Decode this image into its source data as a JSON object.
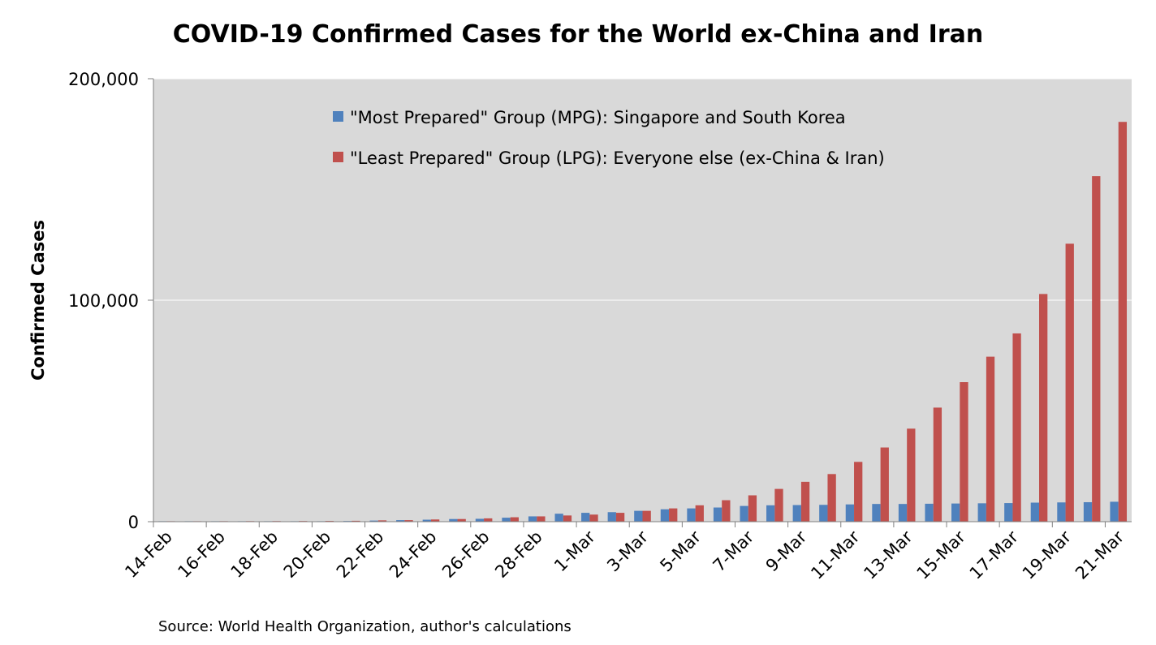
{
  "chart_data": {
    "type": "bar",
    "title": "COVID-19 Confirmed Cases for the World ex-China and Iran",
    "xlabel": "",
    "ylabel": "Confirmed Cases",
    "ylim": [
      0,
      200000
    ],
    "yticks": [
      "0",
      "100,000",
      "200,000"
    ],
    "ytick_values": [
      0,
      100000,
      200000
    ],
    "categories": [
      "14-Feb",
      "15-Feb",
      "16-Feb",
      "17-Feb",
      "18-Feb",
      "19-Feb",
      "20-Feb",
      "21-Feb",
      "22-Feb",
      "23-Feb",
      "24-Feb",
      "25-Feb",
      "26-Feb",
      "27-Feb",
      "28-Feb",
      "29-Feb",
      "1-Mar",
      "2-Mar",
      "3-Mar",
      "4-Mar",
      "5-Mar",
      "6-Mar",
      "7-Mar",
      "8-Mar",
      "9-Mar",
      "10-Mar",
      "11-Mar",
      "12-Mar",
      "13-Mar",
      "14-Mar",
      "15-Mar",
      "16-Mar",
      "17-Mar",
      "18-Mar",
      "19-Mar",
      "20-Mar",
      "21-Mar"
    ],
    "shown_tick_labels": [
      "14-Feb",
      "16-Feb",
      "18-Feb",
      "20-Feb",
      "22-Feb",
      "24-Feb",
      "26-Feb",
      "28-Feb",
      "1-Mar",
      "3-Mar",
      "5-Mar",
      "7-Mar",
      "9-Mar",
      "11-Mar",
      "13-Mar",
      "15-Mar",
      "17-Mar",
      "19-Mar",
      "21-Mar"
    ],
    "series": [
      {
        "name": "\"Most Prepared\" Group (MPG): Singapore and South Korea",
        "color": "#4F81BD",
        "values": [
          100,
          110,
          110,
          110,
          120,
          150,
          200,
          300,
          500,
          700,
          900,
          1200,
          1300,
          1800,
          2400,
          3600,
          4000,
          4300,
          4900,
          5600,
          6000,
          6400,
          7100,
          7400,
          7500,
          7600,
          7800,
          8000,
          8000,
          8100,
          8200,
          8300,
          8400,
          8600,
          8700,
          8800,
          9000
        ]
      },
      {
        "name": "\"Least Prepared\" Group (LPG): Everyone else (ex-China & Iran)",
        "color": "#C0504D",
        "values": [
          200,
          220,
          240,
          260,
          280,
          300,
          340,
          400,
          600,
          700,
          1000,
          1200,
          1500,
          2000,
          2400,
          2800,
          3200,
          4000,
          4900,
          6000,
          7400,
          9700,
          11900,
          14800,
          18000,
          21500,
          27000,
          33500,
          42000,
          51500,
          63000,
          74500,
          85000,
          102800,
          125500,
          156000,
          180500
        ]
      }
    ],
    "grid": true,
    "legend_position": "top",
    "plot_background": "#D9D9D9",
    "source": "Source: World Health Organization, author's calculations"
  }
}
